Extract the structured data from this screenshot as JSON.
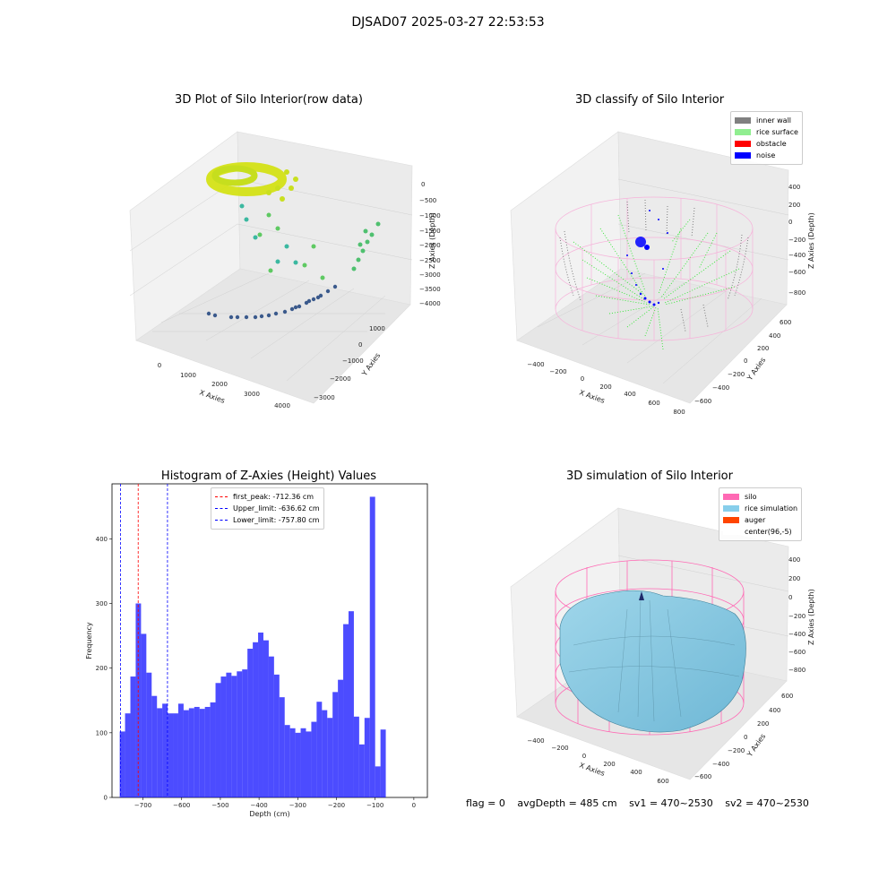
{
  "suptitle": "DJSAD07 2025-03-27 22:53:53",
  "panels": {
    "raw": {
      "title": "3D Plot of Silo Interior(row data)",
      "x_ticks": [
        "0",
        "1000",
        "2000",
        "3000",
        "4000"
      ],
      "y_ticks": [
        "1000",
        "0",
        "−1000",
        "−2000",
        "−3000"
      ],
      "z_ticks": [
        "0",
        "−500",
        "−1000",
        "−1500",
        "−2000",
        "−2500",
        "−3000",
        "−3500",
        "−4000"
      ],
      "x_label": "X Axies",
      "y_label": "Y Axies",
      "z_label": "Z Axies (Depth)"
    },
    "classify": {
      "title": "3D classify of Silo Interior",
      "legend": [
        {
          "label": "inner wall",
          "color": "#808080"
        },
        {
          "label": "rice surface",
          "color": "#90ee90"
        },
        {
          "label": "obstacle",
          "color": "#ff0000"
        },
        {
          "label": "noise",
          "color": "#0000ff"
        }
      ],
      "x_ticks": [
        "−400",
        "−200",
        "0",
        "200",
        "400",
        "600",
        "800"
      ],
      "y_ticks": [
        "600",
        "400",
        "200",
        "0",
        "−200",
        "−400",
        "−600"
      ],
      "z_ticks": [
        "400",
        "200",
        "0",
        "−200",
        "−400",
        "−600",
        "−800"
      ],
      "x_label": "X Axies",
      "y_label": "Y Axies",
      "z_label": "Z Axies (Depth)"
    },
    "simulation": {
      "title": "3D simulation of Silo Interior",
      "legend": [
        {
          "label": "silo",
          "color": "#ff69b4"
        },
        {
          "label": "rice simulation",
          "color": "#87ceeb"
        },
        {
          "label": "auger",
          "color": "#ff4500"
        },
        {
          "label": "center(96,-5)",
          "color": "#ffffff"
        }
      ],
      "x_ticks": [
        "−400",
        "−200",
        "0",
        "200",
        "400",
        "600"
      ],
      "y_ticks": [
        "600",
        "400",
        "200",
        "0",
        "−200",
        "−400",
        "−600"
      ],
      "z_ticks": [
        "400",
        "200",
        "0",
        "−200",
        "−400",
        "−600",
        "−800"
      ],
      "x_label": "X Axies",
      "y_label": "Y Axies",
      "z_label": "Z Axies (Depth)"
    }
  },
  "footer": {
    "flag": "flag = 0",
    "avg": "avgDepth = 485 cm",
    "sv1": "sv1 = 470~2530",
    "sv2": "sv2 = 470~2530"
  },
  "chart_data": {
    "type": "bar",
    "title": "Histogram of Z-Axies (Height) Values",
    "xlabel": "Depth (cm)",
    "ylabel": "Frequency",
    "xlim": [
      -780,
      35
    ],
    "ylim": [
      0,
      485
    ],
    "x_ticks": [
      -700,
      -600,
      -500,
      -400,
      -300,
      -200,
      -100,
      0
    ],
    "x_tick_labels": [
      "−700",
      "−600",
      "−500",
      "−400",
      "−300",
      "−200",
      "−100",
      "0"
    ],
    "y_ticks": [
      0,
      100,
      200,
      300,
      400
    ],
    "bin_start": -760,
    "bin_width": 13.75,
    "values": [
      102,
      130,
      187,
      300,
      253,
      193,
      157,
      138,
      145,
      130,
      130,
      145,
      135,
      138,
      140,
      137,
      140,
      147,
      177,
      187,
      193,
      188,
      195,
      198,
      230,
      240,
      255,
      243,
      218,
      190,
      155,
      112,
      107,
      100,
      107,
      102,
      117,
      148,
      135,
      123,
      163,
      182,
      268,
      288,
      125,
      82,
      123,
      465,
      48,
      105
    ],
    "bar_color": "#0000ff",
    "lines": [
      {
        "label": "first_peak: -712.36 cm",
        "x": -712.36,
        "color": "#ff0000"
      },
      {
        "label": "Upper_limit: -636.62 cm",
        "x": -636.62,
        "color": "#0000ff"
      },
      {
        "label": "Lower_limit: -757.80 cm",
        "x": -757.8,
        "color": "#0000ff"
      }
    ]
  }
}
